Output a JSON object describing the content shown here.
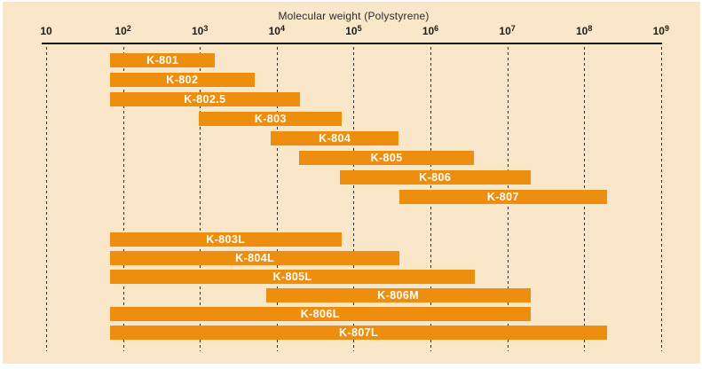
{
  "colors": {
    "page": "#ffffff",
    "panel": "#fae6c9",
    "bar": "#ee8e0e",
    "axis_text": "#1c1c1c",
    "bar_label_text": "#ffffff"
  },
  "chart_data": {
    "type": "bar",
    "subtype": "horizontal-log-range-bars",
    "title": "Molecular weight (Polystyrene)",
    "xlabel": "Molecular weight (Polystyrene)",
    "ylabel": "",
    "x_scale": "log10",
    "xlim": [
      10,
      1000000000
    ],
    "xlim_log": [
      1,
      9
    ],
    "grid": "vertical-dashed-at-each-decade",
    "legend": "none",
    "x_ticks": [
      "10",
      "10^2",
      "10^3",
      "10^4",
      "10^5",
      "10^6",
      "10^7",
      "10^8",
      "10^9"
    ],
    "series": [
      {
        "label": "K-801",
        "group": 1,
        "min": 70,
        "max": 1500,
        "log_min": 1.83,
        "log_max": 3.2
      },
      {
        "label": "K-802",
        "group": 1,
        "min": 70,
        "max": 5000,
        "log_min": 1.83,
        "log_max": 3.71
      },
      {
        "label": "K-802.5",
        "group": 1,
        "min": 70,
        "max": 20000,
        "log_min": 1.83,
        "log_max": 4.3
      },
      {
        "label": "K-803",
        "group": 1,
        "min": 1000,
        "max": 70000,
        "log_min": 2.99,
        "log_max": 4.85
      },
      {
        "label": "K-804",
        "group": 1,
        "min": 8000,
        "max": 400000,
        "log_min": 3.92,
        "log_max": 5.59
      },
      {
        "label": "K-805",
        "group": 1,
        "min": 20000,
        "max": 4000000,
        "log_min": 4.29,
        "log_max": 6.57
      },
      {
        "label": "K-806",
        "group": 1,
        "min": 70000,
        "max": 20000000,
        "log_min": 4.82,
        "log_max": 7.3
      },
      {
        "label": "K-807",
        "group": 1,
        "min": 400000,
        "max": 200000000,
        "log_min": 5.59,
        "log_max": 8.3
      },
      {
        "label": "K-803L",
        "group": 2,
        "min": 70,
        "max": 70000,
        "log_min": 1.83,
        "log_max": 4.84
      },
      {
        "label": "K-804L",
        "group": 2,
        "min": 70,
        "max": 400000,
        "log_min": 1.83,
        "log_max": 5.6
      },
      {
        "label": "K-805L",
        "group": 2,
        "min": 70,
        "max": 4000000,
        "log_min": 1.83,
        "log_max": 6.58
      },
      {
        "label": "K-806M",
        "group": 2,
        "min": 7000,
        "max": 20000000,
        "log_min": 3.86,
        "log_max": 7.3
      },
      {
        "label": "K-806L",
        "group": 2,
        "min": 70,
        "max": 20000000,
        "log_min": 1.83,
        "log_max": 7.3
      },
      {
        "label": "K-807L",
        "group": 2,
        "min": 70,
        "max": 200000000,
        "log_min": 1.83,
        "log_max": 8.3
      }
    ]
  }
}
